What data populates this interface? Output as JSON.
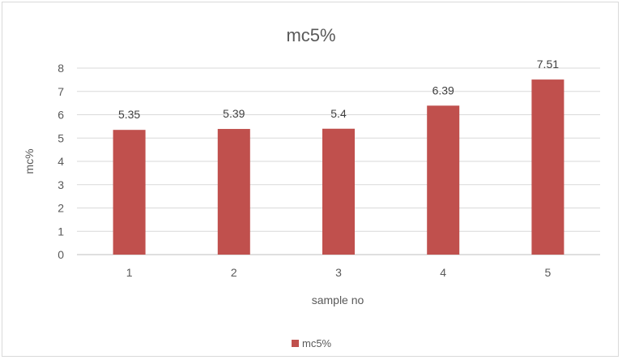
{
  "chart_data": {
    "type": "bar",
    "title": "mc5%",
    "xlabel": "sample no",
    "ylabel": "mc%",
    "categories": [
      "1",
      "2",
      "3",
      "4",
      "5"
    ],
    "series": [
      {
        "name": "mc5%",
        "values": [
          5.35,
          5.39,
          5.4,
          6.39,
          7.51
        ],
        "value_labels": [
          "5.35",
          "5.39",
          "5.4",
          "6.39",
          "7.51"
        ],
        "color": "#c0504d"
      }
    ],
    "ylim": [
      0,
      8
    ],
    "yticks": [
      "0",
      "1",
      "2",
      "3",
      "4",
      "5",
      "6",
      "7",
      "8"
    ],
    "grid": true,
    "legend_position": "bottom"
  }
}
